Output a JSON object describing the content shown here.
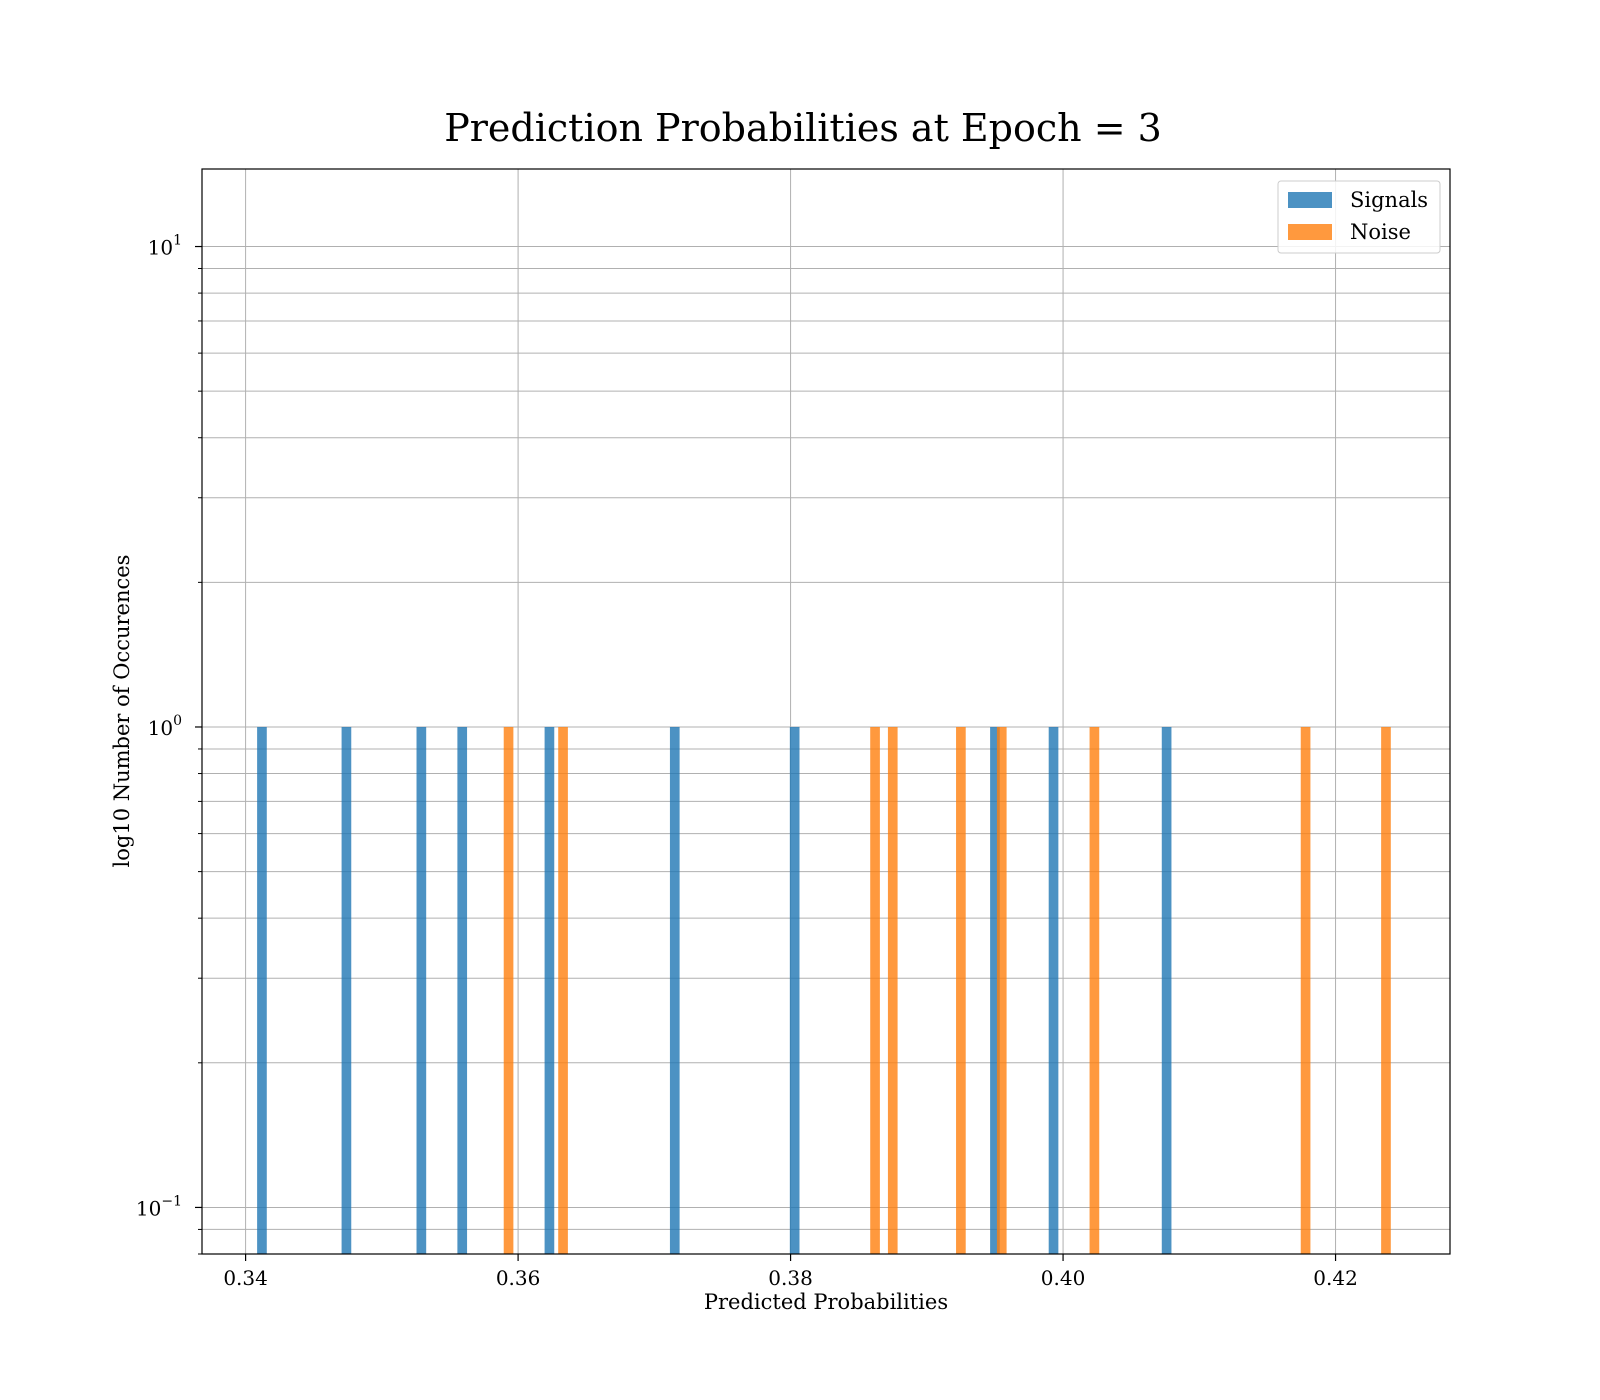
{
  "chart_data": {
    "type": "bar",
    "subtype": "histogram",
    "title": "Prediction Probabilities at Epoch = 3",
    "xlabel": "Predicted Probabilities",
    "ylabel": "log10 Number of Occurences",
    "xlim": [
      0.3368,
      0.4284
    ],
    "ylim": [
      0.08,
      14.5
    ],
    "yscale": "log",
    "grid": true,
    "legend_position": "top-right",
    "x_ticks": [
      {
        "value": 0.34,
        "label": "0.34"
      },
      {
        "value": 0.36,
        "label": "0.36"
      },
      {
        "value": 0.38,
        "label": "0.38"
      },
      {
        "value": 0.4,
        "label": "0.40"
      },
      {
        "value": 0.42,
        "label": "0.42"
      }
    ],
    "y_ticks": [
      {
        "value": 0.1,
        "base": "10",
        "exp": "−1"
      },
      {
        "value": 1,
        "base": "10",
        "exp": "0"
      },
      {
        "value": 10,
        "base": "10",
        "exp": "1"
      }
    ],
    "bin_width": 0.00071,
    "series": [
      {
        "name": "Signals",
        "color": "#1f77b4",
        "bins": [
          {
            "x": 0.3412,
            "count": 1
          },
          {
            "x": 0.3474,
            "count": 1
          },
          {
            "x": 0.3529,
            "count": 1
          },
          {
            "x": 0.3559,
            "count": 1
          },
          {
            "x": 0.3623,
            "count": 1
          },
          {
            "x": 0.3715,
            "count": 1
          },
          {
            "x": 0.3803,
            "count": 1
          },
          {
            "x": 0.395,
            "count": 1
          },
          {
            "x": 0.3993,
            "count": 1
          },
          {
            "x": 0.4076,
            "count": 1
          }
        ]
      },
      {
        "name": "Noise",
        "color": "#ff7f0e",
        "bins": [
          {
            "x": 0.3593,
            "count": 1
          },
          {
            "x": 0.3633,
            "count": 1
          },
          {
            "x": 0.3862,
            "count": 1
          },
          {
            "x": 0.3875,
            "count": 1
          },
          {
            "x": 0.3925,
            "count": 1
          },
          {
            "x": 0.3955,
            "count": 1
          },
          {
            "x": 0.4023,
            "count": 1
          },
          {
            "x": 0.4178,
            "count": 1
          },
          {
            "x": 0.4237,
            "count": 1
          }
        ]
      }
    ],
    "bar_opacity": 0.8
  }
}
